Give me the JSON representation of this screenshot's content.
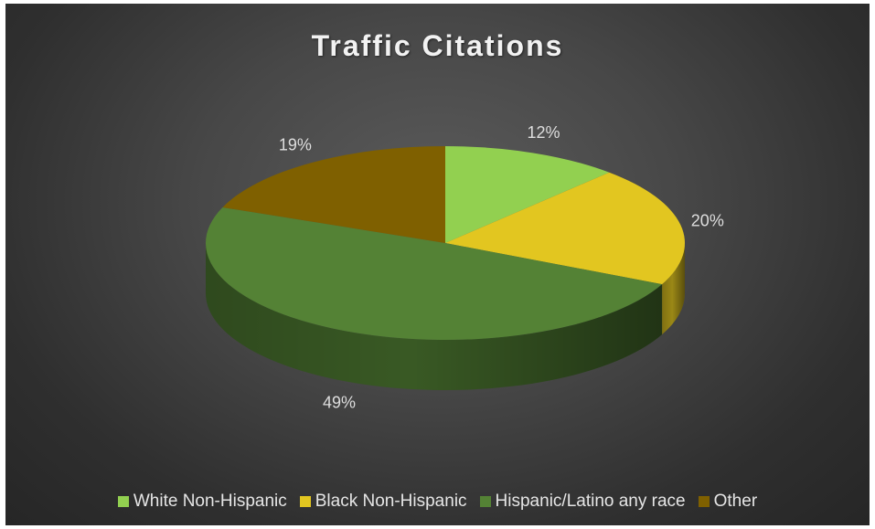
{
  "chart_data": {
    "type": "pie",
    "style": "3d",
    "title": "Traffic Citations",
    "categories": [
      "White Non-Hispanic",
      "Black Non-Hispanic",
      "Hispanic/Latino any race",
      "Other"
    ],
    "values": [
      12,
      20,
      49,
      19
    ],
    "data_labels": [
      "12%",
      "20%",
      "49%",
      "19%"
    ],
    "colors": [
      "#92d050",
      "#e2c620",
      "#548235",
      "#7f6000"
    ],
    "legend_position": "bottom"
  }
}
